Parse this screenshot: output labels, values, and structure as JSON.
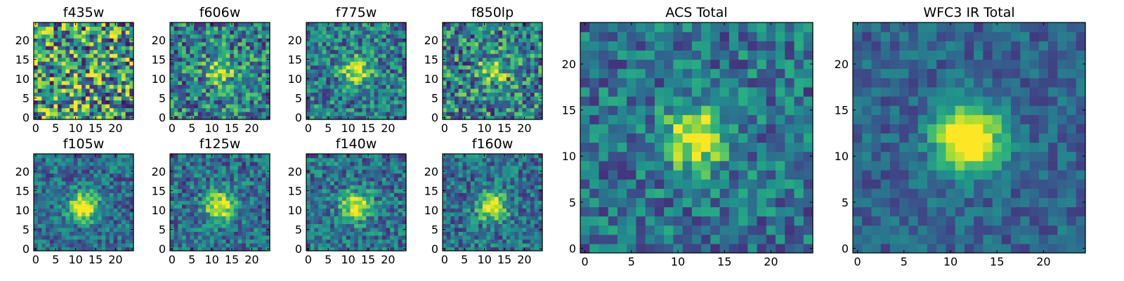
{
  "chart_data": [
    {
      "type": "heatmap",
      "title": "f435w",
      "grid_size": 25,
      "xticks": [
        0,
        5,
        10,
        15,
        20
      ],
      "yticks": [
        0,
        5,
        10,
        15,
        20
      ],
      "xlim": [
        -0.5,
        24.5
      ],
      "ylim": [
        -0.5,
        24.5
      ],
      "peak": [
        12,
        12
      ],
      "peak_value": 0.0,
      "noise": 1.0,
      "seed": 1
    },
    {
      "type": "heatmap",
      "title": "f606w",
      "grid_size": 25,
      "xticks": [
        0,
        5,
        10,
        15,
        20
      ],
      "yticks": [
        0,
        5,
        10,
        15,
        20
      ],
      "xlim": [
        -0.5,
        24.5
      ],
      "ylim": [
        -0.5,
        24.5
      ],
      "peak": [
        12,
        12
      ],
      "peak_value": 0.45,
      "noise": 0.7,
      "seed": 2
    },
    {
      "type": "heatmap",
      "title": "f775w",
      "grid_size": 25,
      "xticks": [
        0,
        5,
        10,
        15,
        20
      ],
      "yticks": [
        0,
        5,
        10,
        15,
        20
      ],
      "xlim": [
        -0.5,
        24.5
      ],
      "ylim": [
        -0.5,
        24.5
      ],
      "peak": [
        12,
        12
      ],
      "peak_value": 0.55,
      "noise": 0.6,
      "seed": 3
    },
    {
      "type": "heatmap",
      "title": "f850lp",
      "grid_size": 25,
      "xticks": [
        0,
        5,
        10,
        15,
        20
      ],
      "yticks": [
        0,
        5,
        10,
        15,
        20
      ],
      "xlim": [
        -0.5,
        24.5
      ],
      "ylim": [
        -0.5,
        24.5
      ],
      "peak": [
        12,
        12
      ],
      "peak_value": 0.4,
      "noise": 0.75,
      "seed": 4
    },
    {
      "type": "heatmap",
      "title": "f105w",
      "grid_size": 25,
      "xticks": [
        0,
        5,
        10,
        15,
        20
      ],
      "yticks": [
        0,
        5,
        10,
        15,
        20
      ],
      "xlim": [
        -0.5,
        24.5
      ],
      "ylim": [
        -0.5,
        24.5
      ],
      "peak": [
        12,
        11
      ],
      "peak_value": 0.75,
      "noise": 0.45,
      "seed": 5
    },
    {
      "type": "heatmap",
      "title": "f125w",
      "grid_size": 25,
      "xticks": [
        0,
        5,
        10,
        15,
        20
      ],
      "yticks": [
        0,
        5,
        10,
        15,
        20
      ],
      "xlim": [
        -0.5,
        24.5
      ],
      "ylim": [
        -0.5,
        24.5
      ],
      "peak": [
        12,
        11
      ],
      "peak_value": 0.7,
      "noise": 0.5,
      "seed": 6
    },
    {
      "type": "heatmap",
      "title": "f140w",
      "grid_size": 25,
      "xticks": [
        0,
        5,
        10,
        15,
        20
      ],
      "yticks": [
        0,
        5,
        10,
        15,
        20
      ],
      "xlim": [
        -0.5,
        24.5
      ],
      "ylim": [
        -0.5,
        24.5
      ],
      "peak": [
        12,
        11
      ],
      "peak_value": 0.65,
      "noise": 0.5,
      "seed": 7
    },
    {
      "type": "heatmap",
      "title": "f160w",
      "grid_size": 25,
      "xticks": [
        0,
        5,
        10,
        15,
        20
      ],
      "yticks": [
        0,
        5,
        10,
        15,
        20
      ],
      "xlim": [
        -0.5,
        24.5
      ],
      "ylim": [
        -0.5,
        24.5
      ],
      "peak": [
        12,
        11
      ],
      "peak_value": 0.7,
      "noise": 0.5,
      "seed": 8
    },
    {
      "type": "heatmap",
      "title": "ACS Total",
      "grid_size": 25,
      "xticks": [
        0,
        5,
        10,
        15,
        20
      ],
      "yticks": [
        0,
        5,
        10,
        15,
        20
      ],
      "xlim": [
        -0.5,
        24.5
      ],
      "ylim": [
        -0.5,
        24.5
      ],
      "peak": [
        12,
        12
      ],
      "peak_value": 0.65,
      "noise": 0.5,
      "seed": 9
    },
    {
      "type": "heatmap",
      "title": "WFC3 IR Total",
      "grid_size": 25,
      "xticks": [
        0,
        5,
        10,
        15,
        20
      ],
      "yticks": [
        0,
        5,
        10,
        15,
        20
      ],
      "xlim": [
        -0.5,
        24.5
      ],
      "ylim": [
        -0.5,
        24.5
      ],
      "peak": [
        12,
        12
      ],
      "peak_value": 0.9,
      "noise": 0.3,
      "seed": 10
    }
  ]
}
